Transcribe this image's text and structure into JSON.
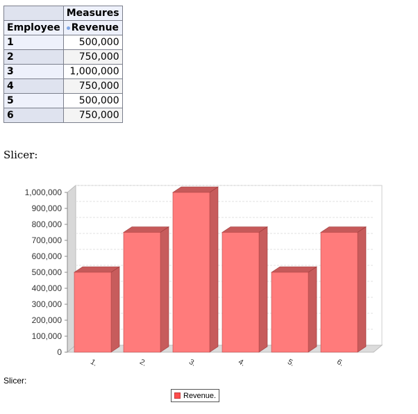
{
  "pivot": {
    "measures_label": "Measures",
    "row_header": "Employee",
    "column_header": "Revenue",
    "rows": [
      {
        "employee": "1",
        "revenue": "500,000"
      },
      {
        "employee": "2",
        "revenue": "750,000"
      },
      {
        "employee": "3",
        "revenue": "1,000,000"
      },
      {
        "employee": "4",
        "revenue": "750,000"
      },
      {
        "employee": "5",
        "revenue": "500,000"
      },
      {
        "employee": "6",
        "revenue": "750,000"
      }
    ]
  },
  "slicer_top": "Slicer:",
  "slicer_bottom": "Slicer:",
  "legend": {
    "label": "Revenue."
  },
  "colors": {
    "bar_front": "#ff7b7b",
    "bar_top": "#c65a5a",
    "bar_side": "#c75c5c"
  },
  "chart_data": {
    "type": "bar",
    "categories": [
      "1",
      "2",
      "3",
      "4",
      "5",
      "6"
    ],
    "series": [
      {
        "name": "Revenue.",
        "values": [
          500000,
          750000,
          1000000,
          750000,
          500000,
          750000
        ]
      }
    ],
    "ylim": [
      0,
      1000000
    ],
    "y_ticks": [
      "0",
      "100,000",
      "200,000",
      "300,000",
      "400,000",
      "500,000",
      "600,000",
      "700,000",
      "800,000",
      "900,000",
      "1,000,000"
    ],
    "x_tick_labels": [
      "1.",
      "2.",
      "3.",
      "4.",
      "5.",
      "6."
    ],
    "grid": true,
    "legend_position": "bottom"
  }
}
